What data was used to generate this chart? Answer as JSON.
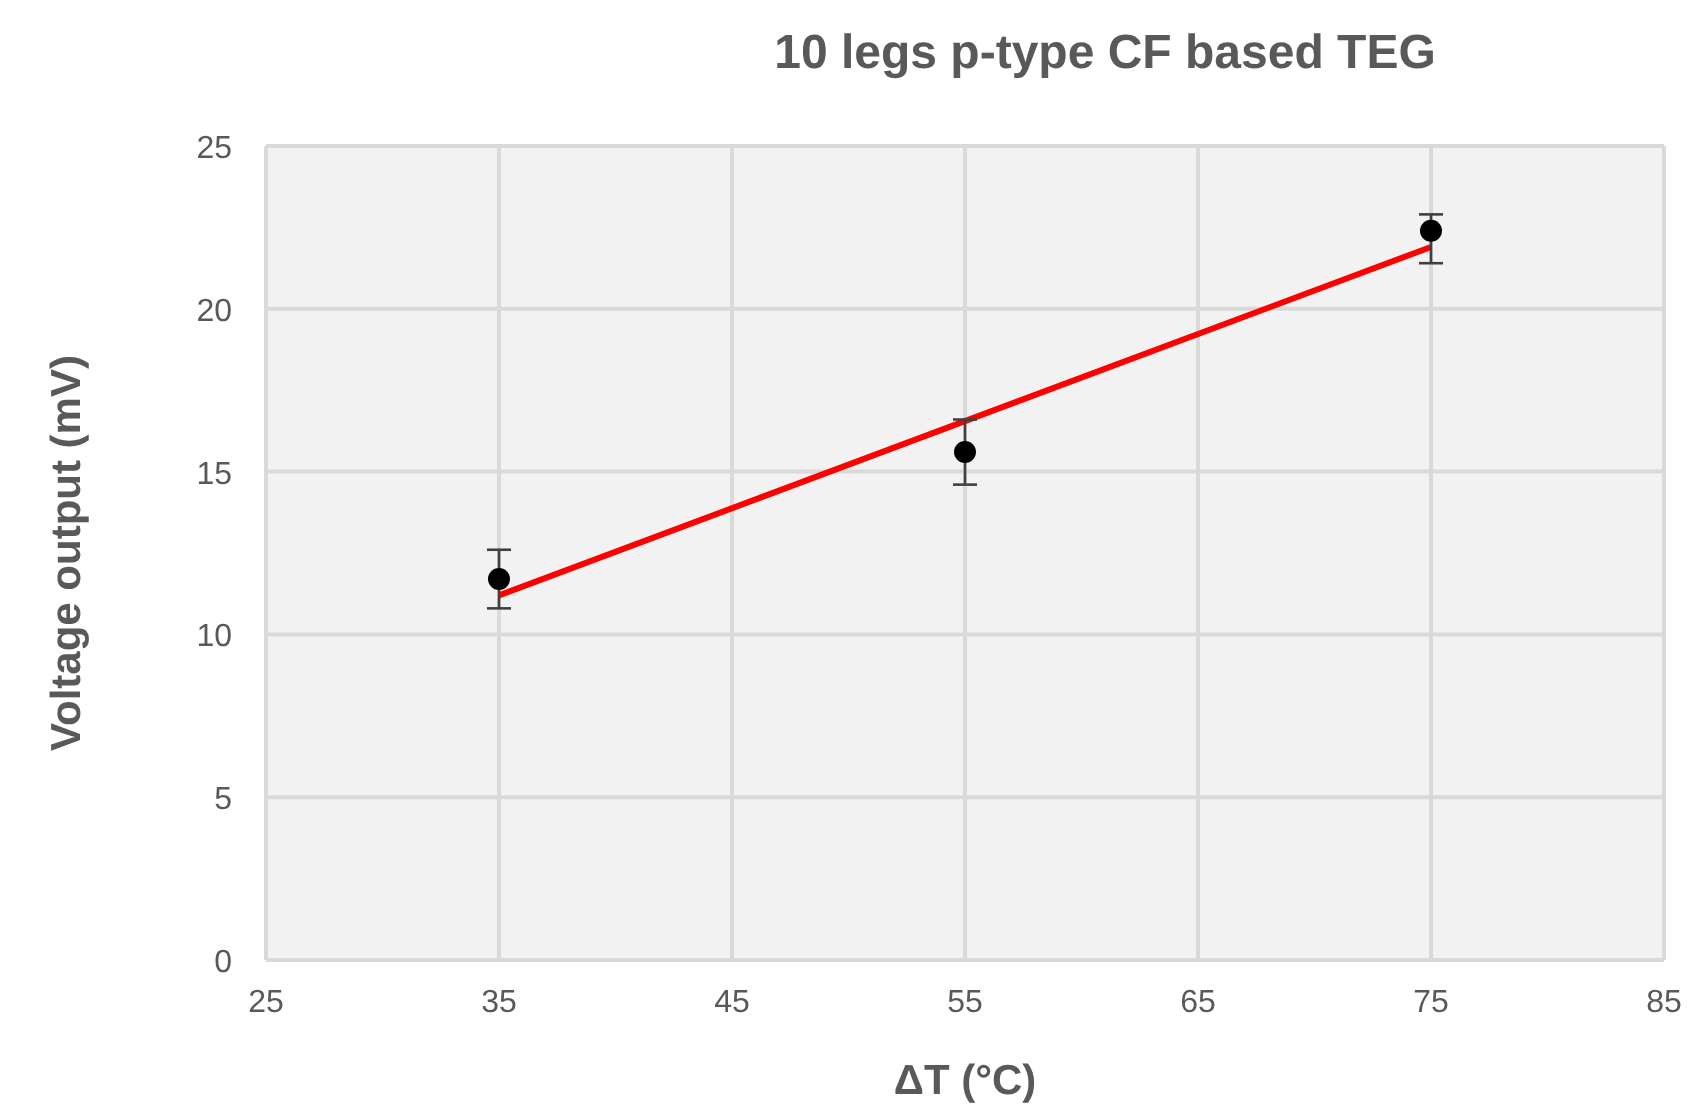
{
  "chart_data": {
    "type": "scatter",
    "title": "10 legs p-type CF based TEG",
    "xlabel": "ΔT (°C)",
    "ylabel": "Voltage output (mV)",
    "xlim": [
      25,
      85
    ],
    "xticks": [
      25,
      35,
      45,
      55,
      65,
      75,
      85
    ],
    "ylim": [
      0,
      25
    ],
    "yticks": [
      0,
      5,
      10,
      15,
      20,
      25
    ],
    "grid": true,
    "series": [
      {
        "type": "line",
        "color": "#ff0000",
        "marker": "none",
        "x": [
          35,
          75
        ],
        "values": [
          11.2,
          21.9
        ]
      },
      {
        "color": "#000000",
        "marker": "circle",
        "x": [
          35,
          55,
          75
        ],
        "values": [
          11.7,
          15.6,
          22.4
        ],
        "errors": [
          0.9,
          1.0,
          [
            21.4,
            22.9
          ]
        ]
      }
    ]
  }
}
